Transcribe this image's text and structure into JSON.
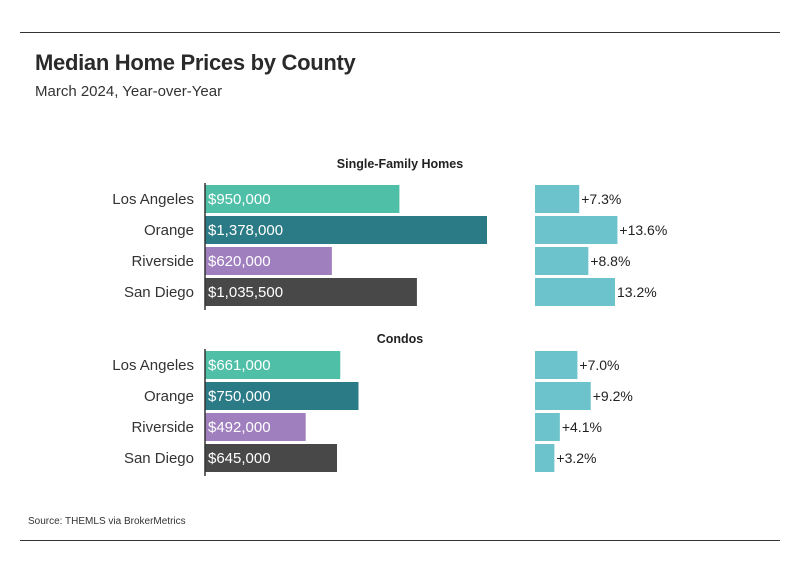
{
  "header": {
    "title": "Median Home Prices by County",
    "subtitle": "March 2024, Year-over-Year"
  },
  "footer": {
    "source": "Source:  THEMLS via BrokerMetrics"
  },
  "colors": {
    "Los Angeles": "#4fbfa8",
    "Orange": "#2b7b86",
    "Riverside": "#a07fbf",
    "San Diego": "#484848",
    "change_bar": "#6cc3cc"
  },
  "chart_data": [
    {
      "type": "bar",
      "orientation": "horizontal",
      "title": "Single-Family Homes",
      "categories": [
        "Los Angeles",
        "Orange",
        "Riverside",
        "San Diego"
      ],
      "series": [
        {
          "values": [
            950000,
            1378000,
            620000,
            1035500
          ],
          "labels": [
            "$950,000",
            "$1,378,000",
            "$620,000",
            "$1,035,500"
          ]
        },
        {
          "values": [
            7.3,
            13.6,
            8.8,
            13.2
          ],
          "labels": [
            "+7.3%",
            "+13.6%",
            "+8.8%",
            "13.2%"
          ]
        }
      ]
    },
    {
      "type": "bar",
      "orientation": "horizontal",
      "title": "Condos",
      "categories": [
        "Los Angeles",
        "Orange",
        "Riverside",
        "San Diego"
      ],
      "series": [
        {
          "values": [
            661000,
            750000,
            492000,
            645000
          ],
          "labels": [
            "$661,000",
            "$750,000",
            "$492,000",
            "$645,000"
          ]
        },
        {
          "values": [
            7.0,
            9.2,
            4.1,
            3.2
          ],
          "labels": [
            "+7.0%",
            "+9.2%",
            "+4.1%",
            "+3.2%"
          ]
        }
      ]
    }
  ]
}
